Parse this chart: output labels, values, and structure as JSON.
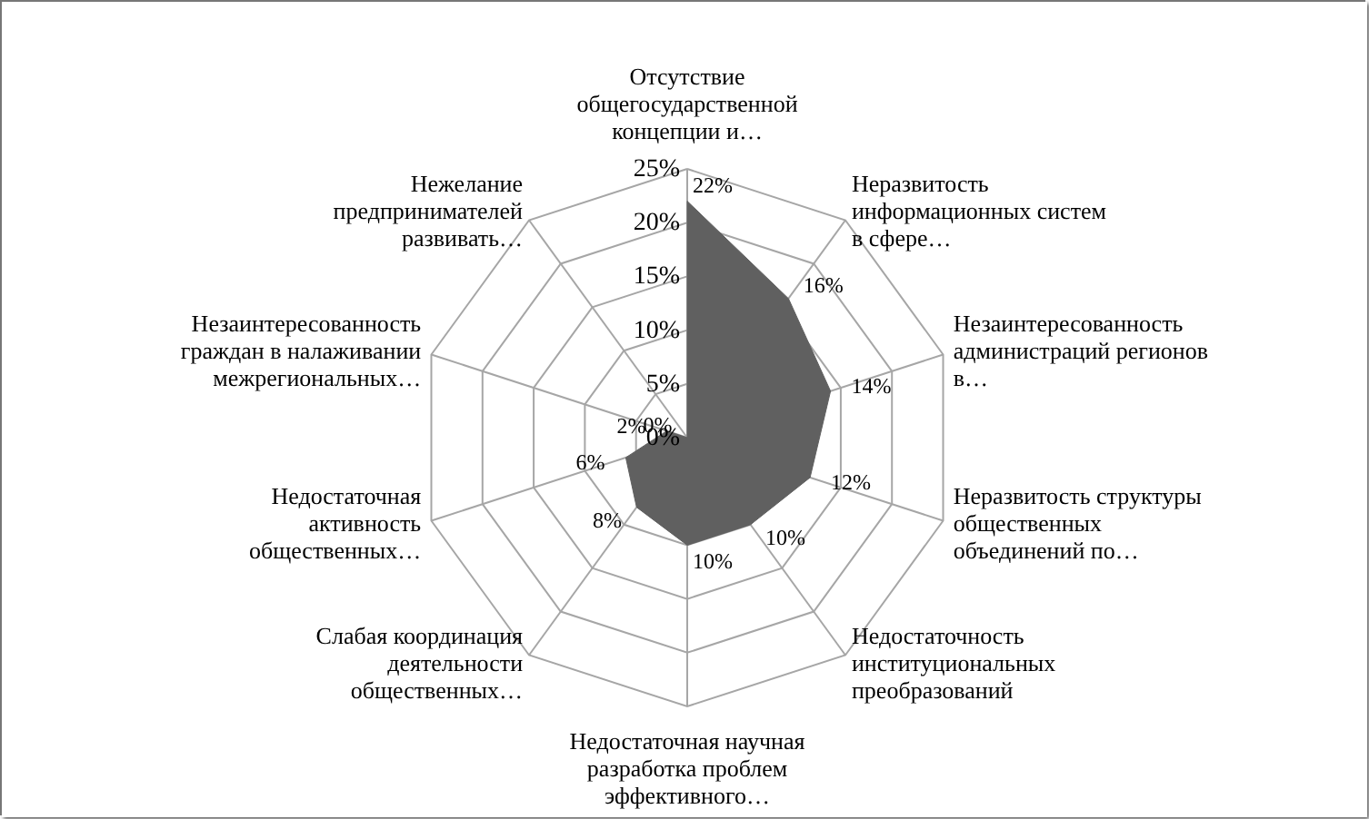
{
  "chart_data": {
    "type": "radar",
    "categories": [
      "Отсутствие общегосударственной концепции и…",
      "Неразвитость информационных систем в сфере…",
      "Незаинтересованность администраций регионов в…",
      "Неразвитость структуры общественных объединений по…",
      "Недостаточность институциональных преобразований",
      "Недостаточная научная разработка проблем эффективного…",
      "Слабая координация деятельности общественных…",
      "Недостаточная активность общественных…",
      "Незаинтересованность граждан в налаживании межрегиональных…",
      "Нежелание предпринимателей развивать…"
    ],
    "series": [
      {
        "color": "#606060",
        "values": [
          22,
          16,
          14,
          12,
          10,
          10,
          8,
          6,
          2,
          0
        ],
        "value_labels": [
          "22%",
          "16%",
          "14%",
          "12%",
          "10%",
          "10%",
          "8%",
          "6%",
          "2%",
          "0%"
        ]
      }
    ],
    "ylim": [
      0,
      25
    ],
    "yticks": [
      {
        "value": 0,
        "label": "0%"
      },
      {
        "value": 5,
        "label": "5%"
      },
      {
        "value": 10,
        "label": "10%"
      },
      {
        "value": 15,
        "label": "15%"
      },
      {
        "value": 20,
        "label": "20%"
      },
      {
        "value": 25,
        "label": "25%"
      }
    ],
    "grid": true
  }
}
